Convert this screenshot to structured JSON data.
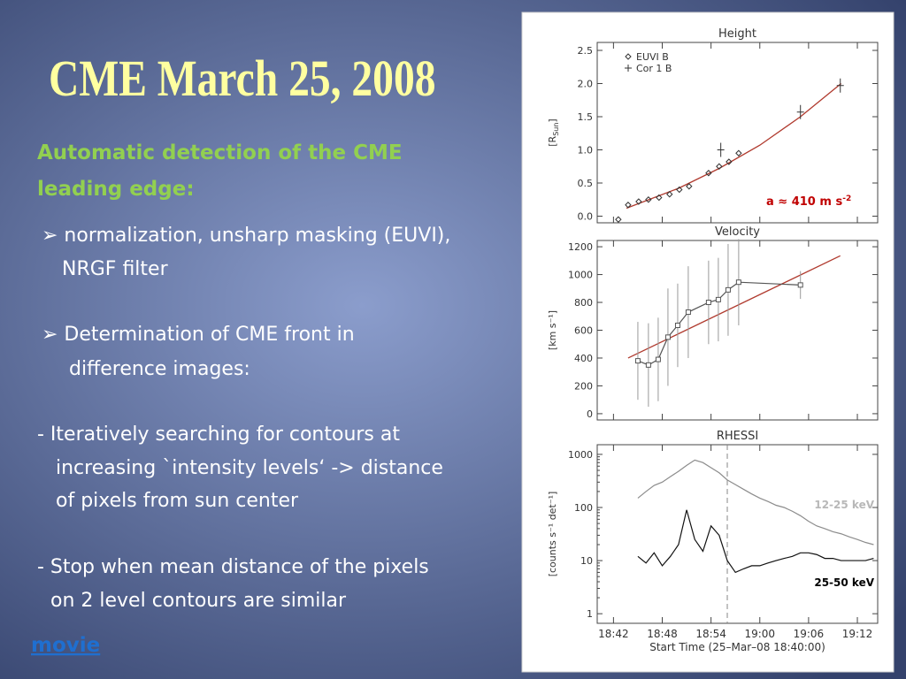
{
  "title": "CME March 25, 2008",
  "heading": [
    "Automatic detection of the CME",
    "leading edge:"
  ],
  "bullets": [
    [
      "➢ normalization, unsharp masking (EUVI),",
      "NRGF filter"
    ],
    [
      "➢ Determination of CME front in",
      "difference  images:"
    ],
    [
      "- Iteratively searching for contours at",
      "increasing  `intensity levels‘ ->  distance",
      "of pixels from sun center"
    ],
    [
      "- Stop when mean distance of the pixels",
      "on 2 level contours are similar"
    ]
  ],
  "link": "movie",
  "chart_data": [
    {
      "type": "scatter",
      "title": "Height",
      "ylabel": {
        "text": "[R",
        "sub": "Sun",
        "end": "]"
      },
      "xlim": [
        0,
        34.5
      ],
      "xticks": [
        2,
        8,
        14,
        20,
        26,
        32
      ],
      "ylim": [
        -0.1,
        2.62
      ],
      "yticks": [
        {
          "value": 0,
          "label": "0.0"
        },
        {
          "value": 0.5,
          "label": "0.5"
        },
        {
          "value": 1,
          "label": "1.0"
        },
        {
          "value": 1.5,
          "label": "1.5"
        },
        {
          "value": 2,
          "label": "2.0"
        },
        {
          "value": 2.5,
          "label": "2.5"
        }
      ],
      "legend": "upper left",
      "series": [
        {
          "name": "EUVI B",
          "marker": "diamond",
          "color": "#333333",
          "x": [
            2.6,
            3.8,
            5.1,
            6.3,
            7.6,
            8.9,
            10.1,
            11.3,
            13.7,
            15.0,
            16.2,
            17.4
          ],
          "values": [
            -0.05,
            0.17,
            0.22,
            0.25,
            0.28,
            0.33,
            0.4,
            0.45,
            0.65,
            0.75,
            0.82,
            0.95
          ]
        },
        {
          "name": "Cor 1 B",
          "marker": "plus",
          "color": "#333333",
          "x": [
            15.2,
            25.0,
            29.9
          ],
          "values": [
            1.0,
            1.57,
            1.97
          ]
        }
      ],
      "fit": {
        "color": "#b03a2e",
        "x": [
          3.6,
          10,
          15,
          20,
          25,
          30
        ],
        "values": [
          0.12,
          0.42,
          0.72,
          1.07,
          1.5,
          2.0
        ]
      },
      "annotation": {
        "text": "a ≈ 410 m s",
        "sup": "-2",
        "color": "#c00000"
      }
    },
    {
      "type": "line",
      "title": "Velocity",
      "ylabel": "[km s⁻¹]",
      "xlim": [
        0,
        34.5
      ],
      "xticks": [
        2,
        8,
        14,
        20,
        26,
        32
      ],
      "ylim": [
        -45,
        1245
      ],
      "yticks": [
        0,
        200,
        400,
        600,
        800,
        1000,
        1200
      ],
      "series": [
        {
          "marker": "square",
          "color": "#555555",
          "x": [
            5.0,
            6.3,
            7.5,
            8.7,
            9.9,
            11.2,
            13.7,
            14.9,
            16.1,
            17.4,
            25.0
          ],
          "values": [
            380,
            350,
            390,
            550,
            635,
            730,
            800,
            820,
            890,
            945,
            925
          ],
          "errors": [
            280,
            300,
            300,
            350,
            300,
            330,
            300,
            300,
            330,
            310,
            100
          ]
        }
      ],
      "fit": {
        "color": "#b03a2e",
        "x": [
          3.8,
          29.9
        ],
        "values": [
          400,
          1135
        ]
      }
    },
    {
      "type": "line",
      "title": "RHESSI",
      "ylabel": "[counts s⁻¹ det⁻¹]",
      "log_scale": true,
      "xlabel": "Start Time (25–Mar–08 18:40:00)",
      "xlim": [
        0,
        34.5
      ],
      "xticks": [
        {
          "value": 2,
          "label": "18:42"
        },
        {
          "value": 8,
          "label": "18:48"
        },
        {
          "value": 14,
          "label": "18:54"
        },
        {
          "value": 20,
          "label": "19:00"
        },
        {
          "value": 26,
          "label": "19:06"
        },
        {
          "value": 32,
          "label": "19:12"
        }
      ],
      "ylim": [
        0.66,
        1520
      ],
      "yticks": [
        1,
        10,
        100,
        1000
      ],
      "vline": 16,
      "series": [
        {
          "name": "12-25 keV",
          "color": "#8c8c8c",
          "label_color": "#b8b8b8",
          "x": [
            5,
            6,
            7,
            8,
            9,
            10,
            11,
            12,
            13,
            14,
            15,
            16,
            17,
            18,
            19,
            20,
            21,
            22,
            23,
            24,
            25,
            26,
            27,
            28,
            29,
            30,
            31,
            32,
            33,
            34
          ],
          "values": [
            150,
            200,
            260,
            300,
            380,
            480,
            620,
            780,
            700,
            560,
            450,
            330,
            270,
            220,
            180,
            150,
            130,
            110,
            100,
            85,
            70,
            55,
            45,
            40,
            35,
            32,
            28,
            25,
            22,
            20
          ]
        },
        {
          "name": "25-50 keV",
          "color": "#111111",
          "label_color": "#000000",
          "x": [
            5,
            6,
            7,
            8,
            9,
            10,
            11,
            12,
            13,
            14,
            15,
            16,
            17,
            18,
            19,
            20,
            21,
            22,
            23,
            24,
            25,
            26,
            27,
            28,
            29,
            30,
            31,
            32,
            33,
            34
          ],
          "values": [
            12,
            9,
            14,
            8,
            12,
            20,
            90,
            25,
            15,
            45,
            30,
            10,
            6,
            7,
            8,
            8,
            9,
            10,
            11,
            12,
            14,
            14,
            13,
            11,
            11,
            10,
            10,
            10,
            10,
            11
          ]
        }
      ]
    }
  ]
}
